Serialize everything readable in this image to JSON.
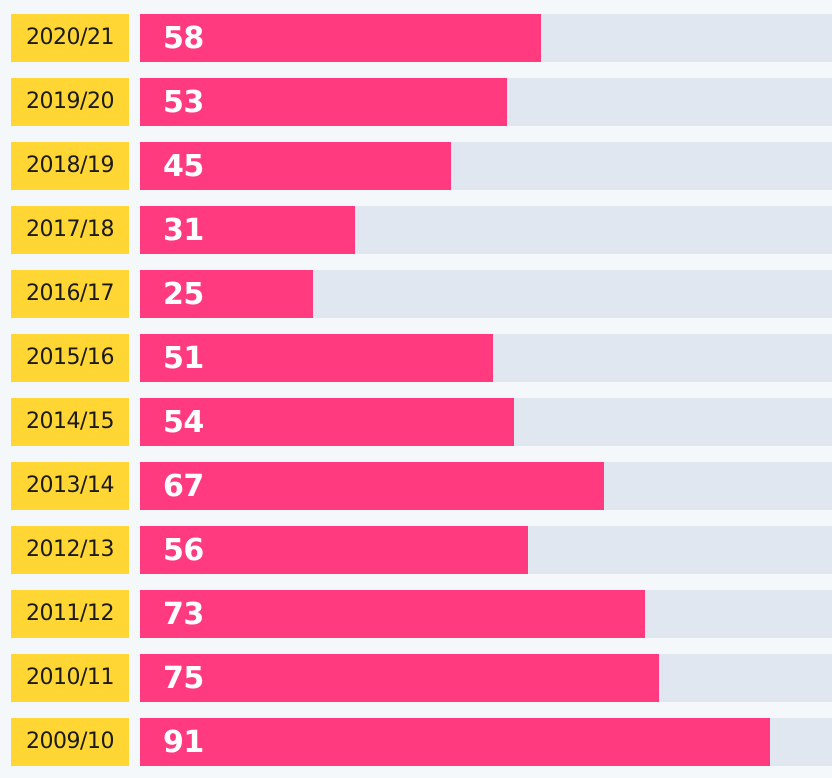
{
  "chart_data": {
    "type": "bar",
    "orientation": "horizontal",
    "categories": [
      "2020/21",
      "2019/20",
      "2018/19",
      "2017/18",
      "2016/17",
      "2015/16",
      "2014/15",
      "2013/14",
      "2012/13",
      "2011/12",
      "2010/11",
      "2009/10"
    ],
    "values": [
      58,
      53,
      45,
      31,
      25,
      51,
      54,
      67,
      56,
      73,
      75,
      91
    ],
    "xlim": [
      0,
      100
    ],
    "grid": false,
    "legend": "none",
    "colors": {
      "bar": "#ff3a7f",
      "track": "#e1e7f0",
      "category_label_bg": "#ffd633",
      "value_text": "#ffffff",
      "category_text": "#1a1a1a",
      "background": "#f4f8fb"
    }
  }
}
